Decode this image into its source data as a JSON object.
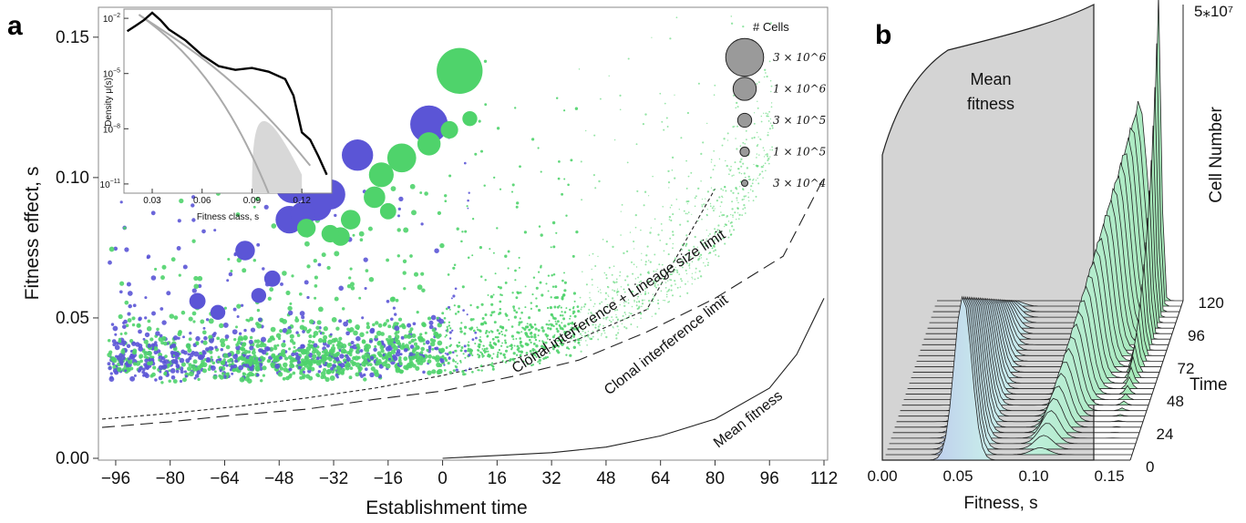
{
  "chart_data": [
    {
      "panel": "a",
      "type": "scatter",
      "xlabel": "Establishment time",
      "ylabel": "Fitness effect, s",
      "xlim": [
        -100,
        112
      ],
      "ylim": [
        0,
        0.16
      ],
      "xticks": [
        "-96",
        "-80",
        "-64",
        "-48",
        "-32",
        "-16",
        "0",
        "16",
        "32",
        "48",
        "64",
        "80",
        "96",
        "112"
      ],
      "yticks": [
        "0.00",
        "0.05",
        "0.10",
        "0.15"
      ],
      "legend": {
        "title": "# Cells",
        "placement": "top-right",
        "entries": [
          "3 × 10^6",
          "1 × 10^6",
          "3 × 10^5",
          "1 × 10^5",
          "3 × 10^4"
        ],
        "cells": [
          3000000,
          1000000,
          300000,
          100000,
          30000
        ]
      },
      "series_colors": {
        "blue": "#5b55d6",
        "green": "#4fd36b"
      },
      "large_points": [
        {
          "x": 5,
          "y": 0.138,
          "cells": 2800000,
          "color": "green"
        },
        {
          "x": -4,
          "y": 0.119,
          "cells": 1800000,
          "color": "blue"
        },
        {
          "x": -25,
          "y": 0.108,
          "cells": 1200000,
          "color": "blue"
        },
        {
          "x": -44,
          "y": 0.097,
          "cells": 1500000,
          "color": "blue"
        },
        {
          "x": -33,
          "y": 0.094,
          "cells": 1100000,
          "color": "blue"
        },
        {
          "x": -37,
          "y": 0.09,
          "cells": 1100000,
          "color": "blue"
        },
        {
          "x": -45,
          "y": 0.085,
          "cells": 900000,
          "color": "blue"
        },
        {
          "x": -41,
          "y": 0.087,
          "cells": 700000,
          "color": "blue"
        },
        {
          "x": -58,
          "y": 0.074,
          "cells": 400000,
          "color": "blue"
        },
        {
          "x": -50,
          "y": 0.064,
          "cells": 250000,
          "color": "blue"
        },
        {
          "x": -72,
          "y": 0.056,
          "cells": 250000,
          "color": "blue"
        },
        {
          "x": -54,
          "y": 0.058,
          "cells": 200000,
          "color": "blue"
        },
        {
          "x": -66,
          "y": 0.052,
          "cells": 200000,
          "color": "blue"
        },
        {
          "x": -12,
          "y": 0.107,
          "cells": 1000000,
          "color": "green"
        },
        {
          "x": -4,
          "y": 0.112,
          "cells": 600000,
          "color": "green"
        },
        {
          "x": -18,
          "y": 0.101,
          "cells": 700000,
          "color": "green"
        },
        {
          "x": -20,
          "y": 0.093,
          "cells": 500000,
          "color": "green"
        },
        {
          "x": -27,
          "y": 0.085,
          "cells": 400000,
          "color": "green"
        },
        {
          "x": -30,
          "y": 0.079,
          "cells": 350000,
          "color": "green"
        },
        {
          "x": -33,
          "y": 0.08,
          "cells": 300000,
          "color": "green"
        },
        {
          "x": -40,
          "y": 0.082,
          "cells": 350000,
          "color": "green"
        },
        {
          "x": 2,
          "y": 0.117,
          "cells": 300000,
          "color": "green"
        },
        {
          "x": 8,
          "y": 0.121,
          "cells": 200000,
          "color": "green"
        },
        {
          "x": -16,
          "y": 0.088,
          "cells": 250000,
          "color": "green"
        }
      ],
      "reference_curves": [
        {
          "name": "Clonal interference + Lineage size limit",
          "style": "short-dash",
          "x": [
            -100,
            -80,
            -60,
            -40,
            -20,
            0,
            20,
            40,
            60,
            80
          ],
          "y": [
            0.014,
            0.016,
            0.0185,
            0.0215,
            0.025,
            0.0295,
            0.035,
            0.0425,
            0.053,
            0.096
          ]
        },
        {
          "name": "Clonal interference limit",
          "style": "long-dash",
          "x": [
            -100,
            -80,
            -60,
            -40,
            -20,
            0,
            20,
            40,
            60,
            80,
            100,
            112
          ],
          "y": [
            0.011,
            0.013,
            0.0155,
            0.0175,
            0.021,
            0.024,
            0.029,
            0.035,
            0.045,
            0.057,
            0.072,
            0.1
          ]
        },
        {
          "name": "Mean fitness",
          "style": "solid",
          "x": [
            0,
            16,
            32,
            48,
            64,
            80,
            96,
            104,
            112
          ],
          "y": [
            0.0,
            0.001,
            0.002,
            0.004,
            0.008,
            0.014,
            0.025,
            0.037,
            0.057
          ]
        }
      ],
      "inset": {
        "type": "line",
        "xlabel": "Fitness class, s",
        "ylabel": "Density μ(s)",
        "xticks": [
          "0.03",
          "0.06",
          "0.09",
          "0.12"
        ],
        "yticks": [
          "10^-2",
          "10^-5",
          "10^-8",
          "10^-11"
        ],
        "log_y": true,
        "x": [
          0.015,
          0.02,
          0.025,
          0.03,
          0.035,
          0.04,
          0.05,
          0.06,
          0.07,
          0.08,
          0.09,
          0.1,
          0.11,
          0.115,
          0.12,
          0.125,
          0.13,
          0.135
        ],
        "log10_y": [
          -2.7,
          -2.4,
          -2.1,
          -1.7,
          -2.1,
          -2.6,
          -3.2,
          -4.0,
          -4.6,
          -4.8,
          -4.7,
          -4.9,
          -5.3,
          -6.2,
          -8.2,
          -8.6,
          -9.5,
          -10.5
        ]
      }
    },
    {
      "panel": "b",
      "type": "area",
      "xlabel": "Fitness, s",
      "ylabel": "Cell Number",
      "zlabel": "Time",
      "xticks": [
        "0.00",
        "0.05",
        "0.10",
        "0.15"
      ],
      "time_ticks": [
        "0",
        "24",
        "48",
        "72",
        "96",
        "120"
      ],
      "z_max_label": "5⁎10⁷",
      "wall_label": "Mean fitness",
      "time_range": [
        0,
        120
      ]
    }
  ],
  "labels": {
    "panel_a": "a",
    "panel_b": "b",
    "cell_number_exp": "7"
  }
}
